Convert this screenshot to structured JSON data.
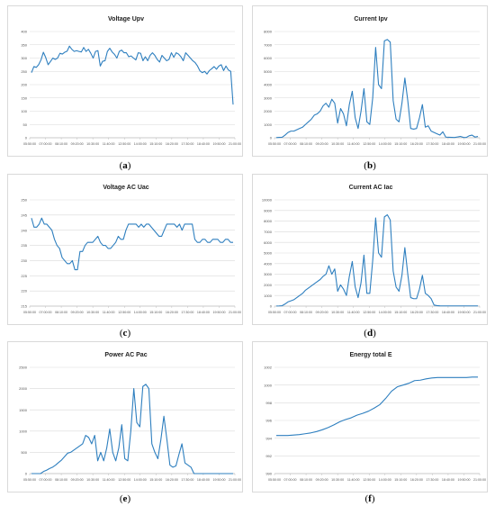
{
  "chart_data": [
    {
      "id": "a",
      "caption_letter": "a",
      "type": "line",
      "title": "Voltage Upv",
      "color": "#2e7fbf",
      "ylim": [
        0,
        400
      ],
      "yticks": [
        0,
        50,
        100,
        150,
        200,
        250,
        300,
        350,
        400
      ],
      "xlabels": [
        "05:50:00",
        "07:00:00",
        "08:10:00",
        "09:20:00",
        "10:30:00",
        "11:40:00",
        "12:50:00",
        "14:00:00",
        "15:10:00",
        "16:20:00",
        "17:30:00",
        "18:40:00",
        "19:50:00",
        "21:00:00"
      ],
      "values": [
        245,
        268,
        265,
        275,
        293,
        322,
        302,
        275,
        287,
        300,
        295,
        300,
        318,
        315,
        322,
        326,
        345,
        333,
        325,
        328,
        325,
        323,
        340,
        325,
        333,
        318,
        300,
        325,
        328,
        270,
        288,
        290,
        325,
        337,
        323,
        314,
        300,
        325,
        330,
        320,
        320,
        305,
        308,
        300,
        293,
        320,
        318,
        290,
        305,
        290,
        310,
        320,
        310,
        295,
        285,
        310,
        300,
        290,
        295,
        320,
        303,
        320,
        315,
        305,
        290,
        320,
        310,
        300,
        290,
        283,
        270,
        252,
        245,
        250,
        240,
        253,
        260,
        268,
        258,
        270,
        275,
        253,
        270,
        255,
        250,
        125
      ]
    },
    {
      "id": "b",
      "caption_letter": "b",
      "type": "line",
      "title": "Current Ipv",
      "color": "#2e7fbf",
      "ylim": [
        0,
        8000
      ],
      "yticks": [
        0,
        1000,
        2000,
        3000,
        4000,
        5000,
        6000,
        7000,
        8000
      ],
      "xlabels": [
        "05:50:00",
        "07:00:00",
        "08:10:00",
        "09:20:00",
        "10:30:00",
        "11:40:00",
        "12:50:00",
        "14:00:00",
        "15:10:00",
        "16:20:00",
        "17:30:00",
        "18:40:00",
        "19:50:00",
        "21:00:00"
      ],
      "values": [
        10,
        30,
        40,
        200,
        400,
        500,
        500,
        600,
        700,
        800,
        1000,
        1200,
        1400,
        1700,
        1800,
        2000,
        2400,
        2600,
        2300,
        2900,
        2600,
        1100,
        2200,
        1800,
        900,
        2500,
        3500,
        1500,
        700,
        2000,
        3700,
        1200,
        1000,
        3000,
        6800,
        4000,
        3700,
        7300,
        7400,
        7200,
        2800,
        1400,
        1200,
        2600,
        4500,
        2800,
        700,
        650,
        700,
        1500,
        2500,
        800,
        900,
        500,
        400,
        300,
        200,
        450,
        50,
        40,
        30,
        20,
        60,
        100,
        30,
        20,
        150,
        200,
        50,
        100
      ]
    },
    {
      "id": "c",
      "caption_letter": "c",
      "type": "line",
      "title": "Voltage AC Uac",
      "color": "#2e7fbf",
      "ylim": [
        215,
        250
      ],
      "yticks": [
        215,
        220,
        225,
        230,
        235,
        240,
        245,
        250
      ],
      "xlabels": [
        "05:50:00",
        "07:00:00",
        "08:10:00",
        "09:20:00",
        "10:30:00",
        "11:40:00",
        "12:50:00",
        "14:00:00",
        "15:10:00",
        "16:20:00",
        "17:30:00",
        "18:40:00",
        "19:50:00",
        "21:00:00"
      ],
      "values": [
        244,
        241,
        241,
        242,
        244,
        242,
        242,
        241,
        240,
        237,
        235,
        234,
        231,
        230,
        229,
        229,
        230,
        227,
        227,
        233,
        233,
        235,
        236,
        236,
        236,
        237,
        238,
        236,
        235,
        235,
        234,
        234,
        235,
        236,
        238,
        237,
        237,
        240,
        242,
        242,
        242,
        242,
        241,
        242,
        241,
        242,
        242,
        241,
        240,
        239,
        238,
        238,
        240,
        242,
        242,
        242,
        242,
        241,
        242,
        240,
        242,
        242,
        242,
        242,
        237,
        236,
        236,
        237,
        237,
        236,
        236,
        237,
        237,
        237,
        236,
        236,
        237,
        237,
        236,
        236
      ]
    },
    {
      "id": "d",
      "caption_letter": "d",
      "type": "line",
      "title": "Current AC Iac",
      "color": "#2e7fbf",
      "ylim": [
        0,
        10000
      ],
      "yticks": [
        0,
        1000,
        2000,
        3000,
        4000,
        5000,
        6000,
        7000,
        8000,
        9000,
        10000
      ],
      "xlabels": [
        "05:50:00",
        "07:00:00",
        "08:10:00",
        "09:20:00",
        "10:30:00",
        "11:40:00",
        "12:50:00",
        "14:00:00",
        "15:10:00",
        "16:20:00",
        "17:30:00",
        "18:40:00",
        "19:50:00",
        "21:00:00"
      ],
      "values": [
        10,
        20,
        40,
        200,
        400,
        500,
        600,
        800,
        1000,
        1200,
        1500,
        1700,
        1900,
        2100,
        2300,
        2500,
        2800,
        3000,
        3800,
        3000,
        3500,
        1400,
        2000,
        1600,
        1000,
        2800,
        4200,
        1800,
        800,
        2200,
        4800,
        1200,
        1200,
        4300,
        8300,
        5000,
        4600,
        8400,
        8600,
        8100,
        3300,
        1800,
        1400,
        2900,
        5500,
        3000,
        800,
        700,
        700,
        1600,
        2900,
        1200,
        1000,
        700,
        100,
        50,
        30,
        20,
        20,
        20,
        20,
        20,
        20,
        20,
        20,
        20,
        20,
        20,
        20,
        20
      ]
    },
    {
      "id": "e",
      "caption_letter": "e",
      "type": "line",
      "title": "Power AC Pac",
      "color": "#2e7fbf",
      "ylim": [
        0,
        2500
      ],
      "yticks": [
        0,
        500,
        1000,
        1500,
        2000,
        2500
      ],
      "xlabels": [
        "05:50:00",
        "07:00:00",
        "08:10:00",
        "09:20:00",
        "10:30:00",
        "11:40:00",
        "12:50:00",
        "14:00:00",
        "15:10:00",
        "16:20:00",
        "17:30:00",
        "18:40:00",
        "19:50:00",
        "21:00:00"
      ],
      "values": [
        0,
        0,
        0,
        0,
        50,
        80,
        120,
        150,
        200,
        260,
        320,
        400,
        480,
        500,
        550,
        600,
        650,
        700,
        900,
        850,
        700,
        900,
        300,
        500,
        300,
        600,
        1050,
        500,
        300,
        600,
        1150,
        350,
        300,
        1000,
        2000,
        1200,
        1100,
        2050,
        2100,
        2000,
        700,
        500,
        350,
        800,
        1350,
        800,
        200,
        150,
        180,
        450,
        700,
        250,
        200,
        150,
        0,
        0,
        0,
        0,
        0,
        0,
        0,
        0,
        0,
        0,
        0,
        0,
        0,
        0
      ]
    },
    {
      "id": "f",
      "caption_letter": "f",
      "type": "line",
      "title": "Energy total E",
      "color": "#2e7fbf",
      "ylim": [
        990,
        1002
      ],
      "yticks": [
        990,
        992,
        994,
        996,
        998,
        1000,
        1002
      ],
      "xlabels": [
        "05:50:00",
        "07:00:00",
        "08:10:00",
        "09:20:00",
        "10:30:00",
        "11:40:00",
        "12:50:00",
        "14:00:00",
        "15:10:00",
        "16:20:00",
        "17:30:00",
        "18:40:00",
        "19:50:00",
        "21:00:00"
      ],
      "values": [
        994.3,
        994.3,
        994.3,
        994.35,
        994.4,
        994.5,
        994.6,
        994.75,
        994.95,
        995.2,
        995.5,
        995.85,
        996.1,
        996.3,
        996.6,
        996.8,
        997.05,
        997.4,
        997.8,
        998.5,
        999.3,
        999.8,
        1000.0,
        1000.2,
        1000.5,
        1000.55,
        1000.7,
        1000.8,
        1000.85,
        1000.85,
        1000.85,
        1000.85,
        1000.85,
        1000.85,
        1000.9,
        1000.9
      ]
    }
  ],
  "captions": [
    {
      "letter": "a"
    },
    {
      "letter": "b"
    },
    {
      "letter": "c"
    },
    {
      "letter": "d"
    },
    {
      "letter": "e"
    },
    {
      "letter": "f"
    }
  ]
}
